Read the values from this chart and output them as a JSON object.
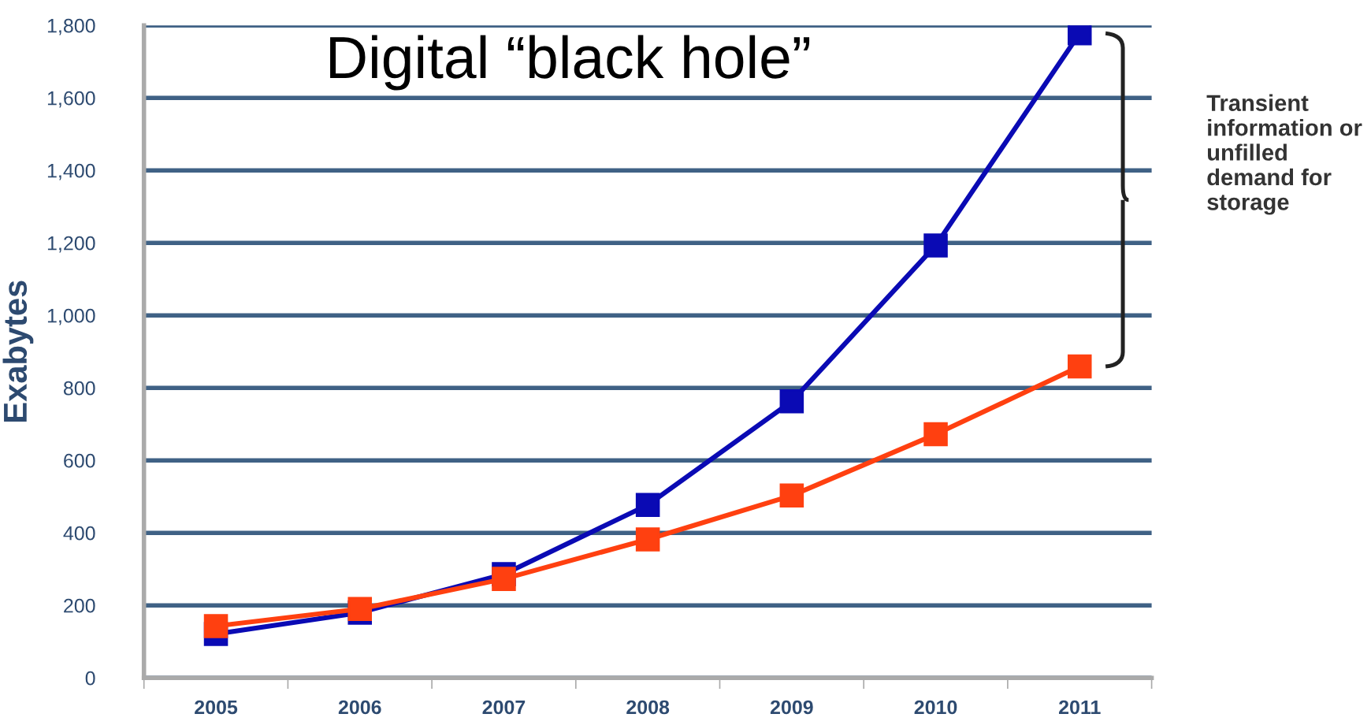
{
  "chart_data": {
    "type": "line",
    "ylabel": "Exabytes",
    "categories": [
      "2005",
      "2006",
      "2007",
      "2008",
      "2009",
      "2010",
      "2011"
    ],
    "series": [
      {
        "color": "#0a0ab4",
        "values": [
          121,
          180,
          286,
          477,
          763,
          1193,
          1778
        ]
      },
      {
        "color": "#ff4010",
        "values": [
          143,
          190,
          273,
          382,
          503,
          672,
          859
        ]
      }
    ],
    "ylim": [
      0,
      1800
    ],
    "yticks": [
      0,
      {
        "value": 200,
        "label": "200"
      },
      400,
      600,
      800,
      {
        "value": 1000,
        "label": "1,000"
      },
      {
        "value": 1200,
        "label": "1,200"
      },
      {
        "value": 1400,
        "label": "1,400"
      },
      {
        "value": 1600,
        "label": "1,600"
      },
      {
        "value": 1800,
        "label": "1,800"
      }
    ],
    "grid": "y",
    "marker": "square",
    "line_style": "solid",
    "title": "Digital “black hole”",
    "annotations": [
      "Transient information or unfilled demand for storage"
    ]
  }
}
